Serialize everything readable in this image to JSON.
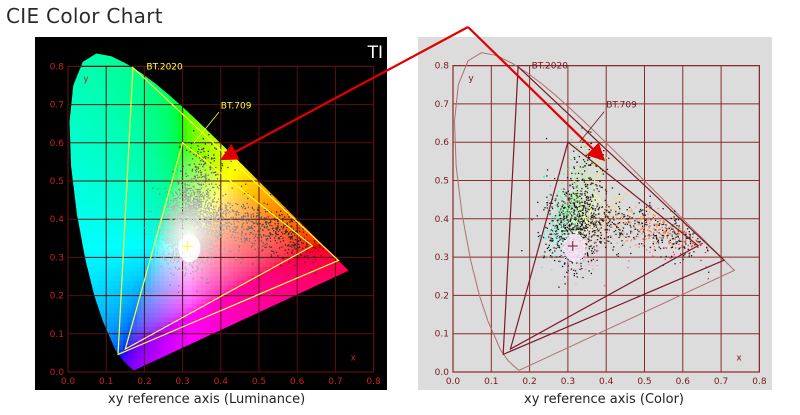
{
  "title": "CIE Color Chart",
  "panels": [
    {
      "id": "luminance",
      "caption": "xy reference axis (Luminance)",
      "x_ticks": [
        "0.0",
        "0.1",
        "0.2",
        "0.3",
        "0.4",
        "0.5",
        "0.6",
        "0.7",
        "0.8"
      ],
      "y_ticks": [
        "0.0",
        "0.1",
        "0.2",
        "0.3",
        "0.4",
        "0.5",
        "0.6",
        "0.7",
        "0.8"
      ],
      "axis_x_label": "x",
      "axis_y_label": "y",
      "bt2020_label": "BT.2020",
      "bt709_label": "BT.709",
      "cutoff_text": "TI",
      "colors": {
        "background": "#000000",
        "grid": "#5a1010",
        "tick": "#cc2222",
        "gamut_outline": "#ffff33",
        "gamut_label": "#ffff33"
      }
    },
    {
      "id": "color",
      "caption": "xy reference axis (Color)",
      "x_ticks": [
        "0.0",
        "0.1",
        "0.2",
        "0.3",
        "0.4",
        "0.5",
        "0.6",
        "0.7",
        "0.8"
      ],
      "y_ticks": [
        "0.0",
        "0.1",
        "0.2",
        "0.3",
        "0.4",
        "0.5",
        "0.6",
        "0.7",
        "0.8"
      ],
      "axis_x_label": "x",
      "axis_y_label": "y",
      "bt2020_label": "BT.2020",
      "bt709_label": "BT.709",
      "colors": {
        "background": "#dcdcdc",
        "grid": "#8a2a2a",
        "tick": "#7a1a1a",
        "gamut_outline": "#7a1a2a",
        "gamut_label": "#6a1a1a"
      }
    }
  ],
  "gamuts": {
    "bt2020": [
      [
        0.708,
        0.292
      ],
      [
        0.17,
        0.797
      ],
      [
        0.131,
        0.046
      ]
    ],
    "bt709": [
      [
        0.64,
        0.33
      ],
      [
        0.3,
        0.6
      ],
      [
        0.15,
        0.06
      ]
    ]
  },
  "white_point": [
    0.3127,
    0.329
  ],
  "axis_range": [
    0.0,
    0.8
  ],
  "annotation": {
    "arrow_color": "#e00000"
  }
}
